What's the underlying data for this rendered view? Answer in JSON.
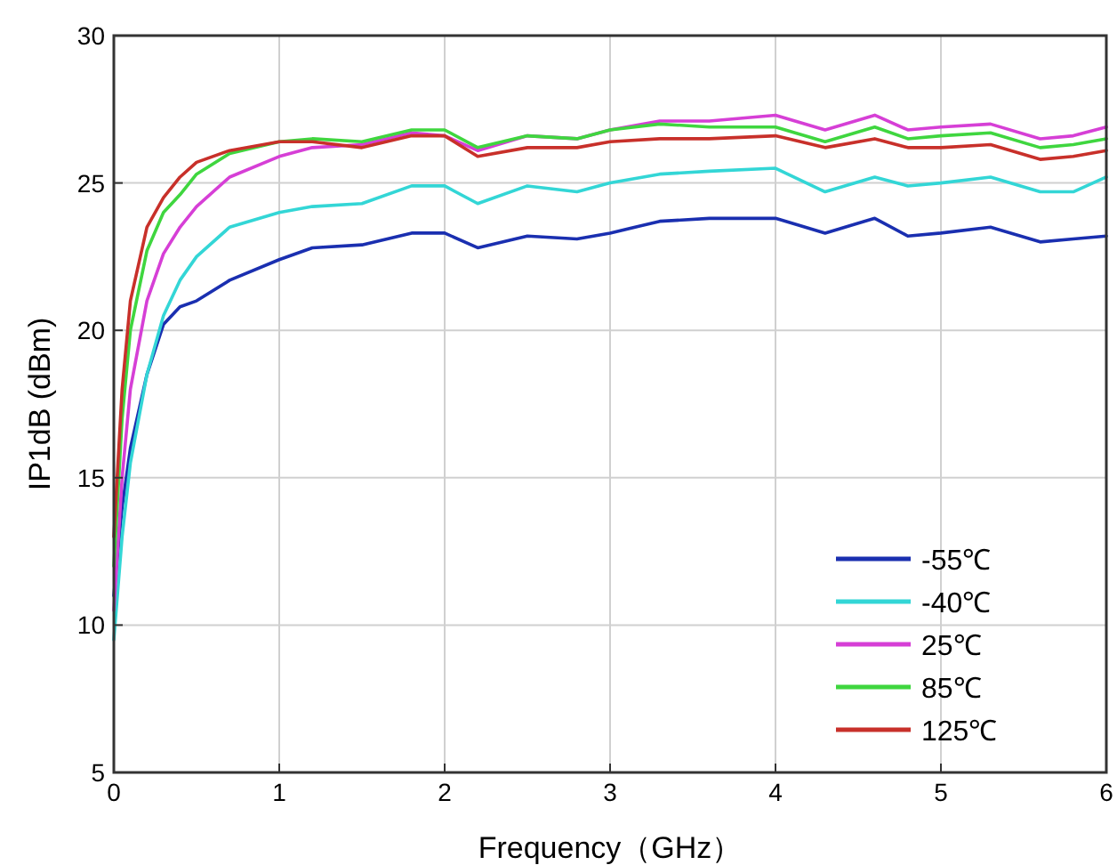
{
  "chart_data": {
    "type": "line",
    "xlabel": "Frequency（GHz）",
    "ylabel": "IP1dB (dBm)",
    "x": [
      0,
      0.05,
      0.1,
      0.2,
      0.3,
      0.4,
      0.5,
      0.7,
      1,
      1.2,
      1.5,
      1.8,
      2,
      2.2,
      2.5,
      2.8,
      3,
      3.3,
      3.6,
      4,
      4.3,
      4.6,
      4.8,
      5,
      5.3,
      5.6,
      5.8,
      6
    ],
    "series": [
      {
        "name": "-55℃",
        "color": "#1a2fb0",
        "values": [
          11,
          14,
          16,
          18.5,
          20.2,
          20.8,
          21.0,
          21.7,
          22.4,
          22.8,
          22.9,
          23.3,
          23.3,
          22.8,
          23.2,
          23.1,
          23.3,
          23.7,
          23.8,
          23.8,
          23.3,
          23.8,
          23.2,
          23.3,
          23.5,
          23.0,
          23.1,
          23.2
        ]
      },
      {
        "name": "-40℃",
        "color": "#33d6d6",
        "values": [
          9.5,
          13,
          15.5,
          18.5,
          20.5,
          21.7,
          22.5,
          23.5,
          24.0,
          24.2,
          24.3,
          24.9,
          24.9,
          24.3,
          24.9,
          24.7,
          25.0,
          25.3,
          25.4,
          25.5,
          24.7,
          25.2,
          24.9,
          25.0,
          25.2,
          24.7,
          24.7,
          25.2
        ]
      },
      {
        "name": "25℃",
        "color": "#d63fd6",
        "values": [
          10.5,
          15,
          18,
          21,
          22.6,
          23.5,
          24.2,
          25.2,
          25.9,
          26.2,
          26.3,
          26.7,
          26.6,
          26.1,
          26.6,
          26.5,
          26.8,
          27.1,
          27.1,
          27.3,
          26.8,
          27.3,
          26.8,
          26.9,
          27.0,
          26.5,
          26.6,
          26.9
        ]
      },
      {
        "name": "85℃",
        "color": "#3fd63f",
        "values": [
          12,
          17,
          20,
          22.7,
          24,
          24.6,
          25.3,
          26.0,
          26.4,
          26.5,
          26.4,
          26.8,
          26.8,
          26.2,
          26.6,
          26.5,
          26.8,
          27.0,
          26.9,
          26.9,
          26.4,
          26.9,
          26.5,
          26.6,
          26.7,
          26.2,
          26.3,
          26.5
        ]
      },
      {
        "name": "125℃",
        "color": "#c8302a",
        "values": [
          13,
          18,
          21,
          23.5,
          24.5,
          25.2,
          25.7,
          26.1,
          26.4,
          26.4,
          26.2,
          26.6,
          26.6,
          25.9,
          26.2,
          26.2,
          26.4,
          26.5,
          26.5,
          26.6,
          26.2,
          26.5,
          26.2,
          26.2,
          26.3,
          25.8,
          25.9,
          26.1
        ]
      }
    ],
    "xlim": [
      0,
      6
    ],
    "xticks": [
      0,
      1,
      2,
      3,
      4,
      5,
      6
    ],
    "ylim": [
      5,
      30
    ],
    "yticks": [
      5,
      10,
      15,
      20,
      25,
      30
    ],
    "grid": true,
    "legend": "bottom right",
    "marker": "none",
    "line_style": "solid"
  }
}
